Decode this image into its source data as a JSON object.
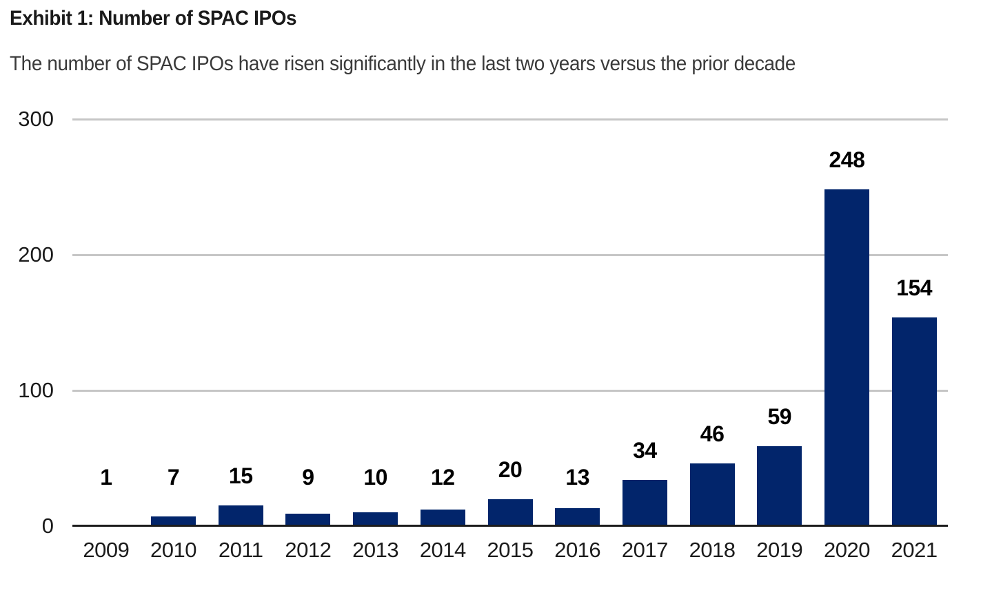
{
  "header": {
    "title": "Exhibit 1: Number of SPAC IPOs",
    "subtitle": "The number of SPAC IPOs have risen significantly in the last two years versus the prior decade"
  },
  "chart_data": {
    "type": "bar",
    "title": "Exhibit 1: Number of SPAC IPOs",
    "subtitle": "The number of SPAC IPOs have risen significantly in the last two years versus the prior decade",
    "series_name": "Number of SPAC IPOs",
    "categories": [
      "2009",
      "2010",
      "2011",
      "2012",
      "2013",
      "2014",
      "2015",
      "2016",
      "2017",
      "2018",
      "2019",
      "2020",
      "2021"
    ],
    "values": [
      1,
      7,
      15,
      9,
      10,
      12,
      20,
      13,
      34,
      46,
      59,
      248,
      154
    ],
    "xlabel": "",
    "ylabel": "",
    "ylim": [
      0,
      300
    ],
    "yticks": [
      0,
      100,
      200,
      300
    ],
    "grid": "horizontal",
    "legend_position": "none",
    "data_labels": true,
    "colors": {
      "bar": "#02256b",
      "gridline": "#c6c6c6",
      "axis_line": "#1c1c1c",
      "data_label": "#000000",
      "tick_label": "#1a1a1a",
      "title": "#1a1a1a",
      "subtitle": "#3a3a3a"
    }
  }
}
